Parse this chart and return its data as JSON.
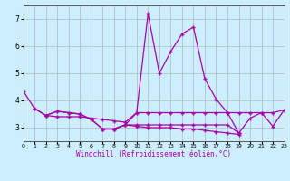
{
  "xlabel": "Windchill (Refroidissement éolien,°C)",
  "bg_color": "#cceeff",
  "grid_color": "#aabbbb",
  "line_color": "#aa00aa",
  "xlim": [
    0,
    23
  ],
  "ylim": [
    2.5,
    7.5
  ],
  "yticks": [
    3,
    4,
    5,
    6,
    7
  ],
  "xtick_labels": [
    "0",
    "1",
    "2",
    "3",
    "4",
    "5",
    "6",
    "7",
    "8",
    "9",
    "10",
    "11",
    "12",
    "13",
    "14",
    "15",
    "16",
    "17",
    "18",
    "19",
    "20",
    "21",
    "22",
    "23"
  ],
  "s1_x": [
    0,
    1,
    2,
    3,
    4,
    5,
    6,
    7,
    8,
    9,
    10,
    11,
    12,
    13,
    14,
    15,
    16,
    17,
    18,
    19,
    20,
    21,
    22,
    23
  ],
  "s1_y": [
    4.35,
    3.7,
    3.45,
    3.6,
    3.55,
    3.5,
    3.3,
    2.95,
    2.95,
    3.1,
    3.55,
    7.2,
    5.0,
    5.8,
    6.45,
    6.7,
    4.8,
    4.05,
    3.55,
    2.8,
    3.35,
    3.55,
    3.05,
    3.65
  ],
  "s2_x": [
    1,
    2,
    3,
    4,
    5,
    6,
    7,
    8,
    9,
    10,
    11,
    12,
    13,
    14,
    15,
    16,
    17,
    18,
    19,
    20,
    21,
    22,
    23
  ],
  "s2_y": [
    3.7,
    3.45,
    3.4,
    3.4,
    3.4,
    3.35,
    3.3,
    3.25,
    3.2,
    3.55,
    3.55,
    3.55,
    3.55,
    3.55,
    3.55,
    3.55,
    3.55,
    3.55,
    3.55,
    3.55,
    3.55,
    3.55,
    3.65
  ],
  "s3_x": [
    2,
    3,
    4,
    5,
    6,
    7,
    8,
    9,
    10,
    11,
    12,
    13,
    14,
    15,
    16,
    17,
    18,
    19
  ],
  "s3_y": [
    3.45,
    3.6,
    3.55,
    3.5,
    3.3,
    2.95,
    2.95,
    3.1,
    3.1,
    3.1,
    3.1,
    3.1,
    3.1,
    3.1,
    3.1,
    3.1,
    3.1,
    2.8
  ],
  "s4_x": [
    7,
    8,
    9,
    10,
    11,
    12,
    13,
    14,
    15,
    16,
    17,
    18,
    19
  ],
  "s4_y": [
    2.95,
    2.95,
    3.1,
    3.05,
    3.0,
    3.0,
    3.0,
    2.95,
    2.95,
    2.9,
    2.85,
    2.8,
    2.75
  ],
  "linewidth": 0.9,
  "marker": "+",
  "markersize": 3.5,
  "xlabel_fontsize": 5.5,
  "tick_fontsize_x": 4.5,
  "tick_fontsize_y": 5.5
}
